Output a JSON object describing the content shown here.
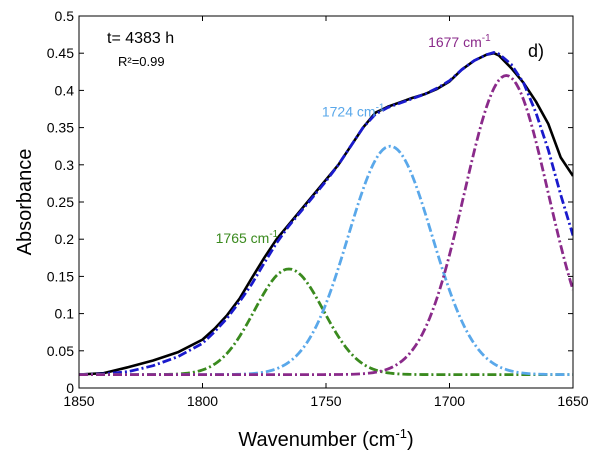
{
  "chart_data": {
    "type": "line",
    "xlabel": "Wavenumber (cm",
    "xlabel_sup": "-1",
    "xlabel_tail": ")",
    "ylabel": "Absorbance",
    "xlim": [
      1850,
      1650
    ],
    "x_reversed": true,
    "ylim": [
      0,
      0.5
    ],
    "xticks": [
      "1850",
      "1800",
      "1750",
      "1700",
      "1650"
    ],
    "xtick_values": [
      1850,
      1800,
      1750,
      1700,
      1650
    ],
    "yticks": [
      "0",
      "0.05",
      "0.1",
      "0.15",
      "0.2",
      "0.25",
      "0.3",
      "0.35",
      "0.4",
      "0.45",
      "0.5"
    ],
    "ytick_values": [
      0,
      0.05,
      0.1,
      0.15,
      0.2,
      0.25,
      0.3,
      0.35,
      0.4,
      0.45,
      0.5
    ],
    "annotations": {
      "time": "t= 4383 h",
      "r2": "R²=0.99",
      "panel": "d)"
    },
    "peak_labels": [
      {
        "text": "1765 cm",
        "sup": "-1",
        "color": "#3a8a1e",
        "x": 1782,
        "y": 0.195
      },
      {
        "text": "1724 cm",
        "sup": "-1",
        "color": "#5aa8ea",
        "x": 1739,
        "y": 0.365
      },
      {
        "text": "1677 cm",
        "sup": "-1",
        "color": "#8a2a8a",
        "x": 1696,
        "y": 0.458
      }
    ],
    "series": [
      {
        "style": "solid",
        "color": "#000000",
        "x": [
          1850,
          1840,
          1830,
          1820,
          1810,
          1800,
          1795,
          1790,
          1785,
          1780,
          1775,
          1770,
          1765,
          1760,
          1755,
          1750,
          1745,
          1740,
          1735,
          1730,
          1725,
          1720,
          1715,
          1710,
          1705,
          1700,
          1695,
          1690,
          1685,
          1682,
          1680,
          1675,
          1670,
          1665,
          1660,
          1655,
          1650
        ],
        "y": [
          0.018,
          0.02,
          0.028,
          0.037,
          0.048,
          0.065,
          0.08,
          0.098,
          0.12,
          0.148,
          0.175,
          0.2,
          0.22,
          0.24,
          0.26,
          0.28,
          0.3,
          0.325,
          0.35,
          0.37,
          0.378,
          0.384,
          0.39,
          0.395,
          0.402,
          0.412,
          0.428,
          0.44,
          0.448,
          0.45,
          0.447,
          0.43,
          0.41,
          0.385,
          0.355,
          0.31,
          0.285
        ]
      },
      {
        "style": "dashdot",
        "color": "#1a1acc",
        "x": [
          1850,
          1840,
          1830,
          1820,
          1810,
          1800,
          1795,
          1790,
          1785,
          1780,
          1775,
          1770,
          1765,
          1760,
          1755,
          1750,
          1745,
          1740,
          1735,
          1730,
          1725,
          1720,
          1715,
          1710,
          1705,
          1700,
          1695,
          1690,
          1685,
          1682,
          1680,
          1675,
          1670,
          1665,
          1660,
          1655,
          1650
        ],
        "y": [
          0.018,
          0.019,
          0.022,
          0.03,
          0.042,
          0.06,
          0.076,
          0.094,
          0.116,
          0.14,
          0.168,
          0.195,
          0.218,
          0.238,
          0.258,
          0.278,
          0.3,
          0.325,
          0.35,
          0.368,
          0.377,
          0.383,
          0.389,
          0.395,
          0.403,
          0.413,
          0.428,
          0.44,
          0.448,
          0.451,
          0.449,
          0.435,
          0.41,
          0.37,
          0.32,
          0.26,
          0.205
        ]
      },
      {
        "style": "dashdot",
        "color": "#3a8a1e",
        "gaussian": {
          "center": 1765,
          "amp": 0.142,
          "sigma": 14,
          "base": 0.018
        }
      },
      {
        "style": "dashdot",
        "color": "#5aa8ea",
        "gaussian": {
          "center": 1724,
          "amp": 0.307,
          "sigma": 17,
          "base": 0.018
        }
      },
      {
        "style": "dashdot",
        "color": "#8a2a8a",
        "gaussian": {
          "center": 1677,
          "amp": 0.402,
          "sigma": 17,
          "base": 0.018
        }
      }
    ]
  }
}
